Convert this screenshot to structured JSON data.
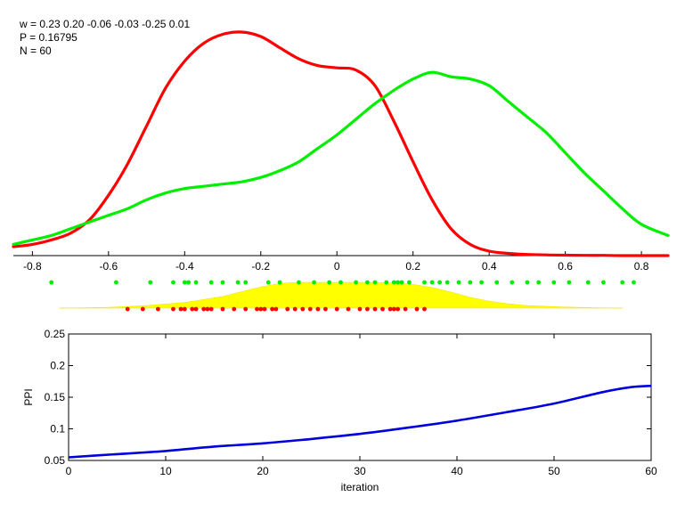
{
  "info": {
    "weights": "w = 0.23  0.20  -0.06  -0.03  -0.25  0.01",
    "p": "P = 0.16795",
    "n": "N = 60"
  },
  "colors": {
    "red_density": "#ff0000",
    "green_density": "#00ee00",
    "yellow_fill": "#ffff00",
    "ppi_line": "#0000dd",
    "axis": "#000000"
  },
  "chart_data": [
    {
      "type": "line",
      "title": "",
      "xlabel": "",
      "ylabel": "",
      "xlim": [
        -0.85,
        0.87
      ],
      "xticks": [
        -0.8,
        -0.6,
        -0.4,
        -0.2,
        0,
        0.2,
        0.4,
        0.6,
        0.8
      ],
      "xtick_labels": [
        "-0.8",
        "-0.6",
        "-0.4",
        "-0.2",
        "0",
        "0.2",
        "0.4",
        "0.6",
        "0.8"
      ],
      "ylim": [
        0,
        1
      ],
      "y_axis_shown": false,
      "grid": false,
      "series": [
        {
          "color": "#ff0000",
          "x": [
            -0.85,
            -0.8,
            -0.75,
            -0.7,
            -0.65,
            -0.6,
            -0.55,
            -0.5,
            -0.45,
            -0.4,
            -0.35,
            -0.3,
            -0.25,
            -0.2,
            -0.15,
            -0.1,
            -0.05,
            0,
            0.05,
            0.1,
            0.15,
            0.2,
            0.25,
            0.3,
            0.35,
            0.4,
            0.45,
            0.5,
            0.55,
            0.6,
            0.65,
            0.7,
            0.75,
            0.8,
            0.87
          ],
          "y": [
            0.04,
            0.05,
            0.07,
            0.1,
            0.16,
            0.27,
            0.41,
            0.58,
            0.75,
            0.87,
            0.95,
            0.99,
            1.0,
            0.98,
            0.93,
            0.88,
            0.85,
            0.84,
            0.83,
            0.76,
            0.6,
            0.42,
            0.25,
            0.12,
            0.05,
            0.02,
            0.01,
            0.005,
            0.003,
            0.002,
            0.001,
            0.001,
            0.0,
            0.0,
            0.0
          ]
        },
        {
          "color": "#00ee00",
          "x": [
            -0.85,
            -0.8,
            -0.75,
            -0.7,
            -0.65,
            -0.6,
            -0.55,
            -0.5,
            -0.45,
            -0.4,
            -0.35,
            -0.3,
            -0.25,
            -0.2,
            -0.15,
            -0.1,
            -0.05,
            0,
            0.05,
            0.1,
            0.15,
            0.2,
            0.25,
            0.3,
            0.35,
            0.4,
            0.45,
            0.5,
            0.55,
            0.6,
            0.65,
            0.7,
            0.75,
            0.8,
            0.87
          ],
          "y": [
            0.05,
            0.07,
            0.09,
            0.12,
            0.15,
            0.18,
            0.21,
            0.25,
            0.28,
            0.3,
            0.31,
            0.32,
            0.33,
            0.35,
            0.38,
            0.42,
            0.48,
            0.54,
            0.61,
            0.68,
            0.74,
            0.79,
            0.82,
            0.8,
            0.79,
            0.76,
            0.69,
            0.62,
            0.55,
            0.46,
            0.37,
            0.29,
            0.21,
            0.14,
            0.09
          ]
        }
      ]
    },
    {
      "type": "scatter",
      "title": "",
      "xlim": [
        -0.85,
        0.87
      ],
      "series": [
        {
          "color": "#00ee00",
          "x": [
            -0.75,
            -0.58,
            -0.49,
            -0.43,
            -0.4,
            -0.39,
            -0.37,
            -0.33,
            -0.3,
            -0.26,
            -0.24,
            -0.18,
            -0.15,
            -0.1,
            -0.06,
            -0.02,
            0.01,
            0.05,
            0.08,
            0.1,
            0.13,
            0.15,
            0.16,
            0.17,
            0.19,
            0.23,
            0.25,
            0.27,
            0.29,
            0.32,
            0.35,
            0.38,
            0.42,
            0.46,
            0.5,
            0.53,
            0.57,
            0.61,
            0.66,
            0.7,
            0.75,
            0.78
          ]
        },
        {
          "color": "#ff0000",
          "x": [
            -0.55,
            -0.51,
            -0.47,
            -0.43,
            -0.41,
            -0.4,
            -0.38,
            -0.37,
            -0.35,
            -0.34,
            -0.33,
            -0.3,
            -0.27,
            -0.24,
            -0.21,
            -0.2,
            -0.19,
            -0.17,
            -0.16,
            -0.13,
            -0.11,
            -0.09,
            -0.07,
            -0.05,
            -0.03,
            0.0,
            0.03,
            0.06,
            0.08,
            0.1,
            0.12,
            0.14,
            0.15,
            0.16,
            0.18,
            0.21,
            0.23
          ]
        }
      ],
      "area": {
        "color": "#ffff00",
        "x": [
          -0.73,
          -0.6,
          -0.5,
          -0.4,
          -0.3,
          -0.25,
          -0.2,
          -0.15,
          -0.1,
          0,
          0.1,
          0.15,
          0.2,
          0.25,
          0.3,
          0.35,
          0.4,
          0.45,
          0.5,
          0.6,
          0.7,
          0.75
        ],
        "y": [
          0.0,
          0.03,
          0.1,
          0.22,
          0.45,
          0.64,
          0.82,
          0.96,
          1.0,
          1.0,
          1.0,
          0.98,
          0.92,
          0.8,
          0.62,
          0.42,
          0.27,
          0.17,
          0.1,
          0.04,
          0.01,
          0.0
        ]
      }
    },
    {
      "type": "line",
      "title": "",
      "xlabel": "iteration",
      "ylabel": "PPI",
      "xlim": [
        0,
        60
      ],
      "ylim": [
        0.05,
        0.25
      ],
      "xticks": [
        0,
        10,
        20,
        30,
        40,
        50,
        60
      ],
      "yticks": [
        0.05,
        0.1,
        0.15,
        0.2,
        0.25
      ],
      "xtick_labels": [
        "0",
        "10",
        "20",
        "30",
        "40",
        "50",
        "60"
      ],
      "ytick_labels": [
        "0.05",
        "0.1",
        "0.15",
        "0.2",
        "0.25"
      ],
      "grid": false,
      "series": [
        {
          "color": "#0000dd",
          "x": [
            0,
            5,
            10,
            15,
            20,
            25,
            30,
            35,
            40,
            45,
            50,
            55,
            58,
            60
          ],
          "y": [
            0.055,
            0.06,
            0.065,
            0.072,
            0.077,
            0.084,
            0.092,
            0.102,
            0.113,
            0.126,
            0.14,
            0.158,
            0.166,
            0.168
          ]
        }
      ]
    }
  ]
}
